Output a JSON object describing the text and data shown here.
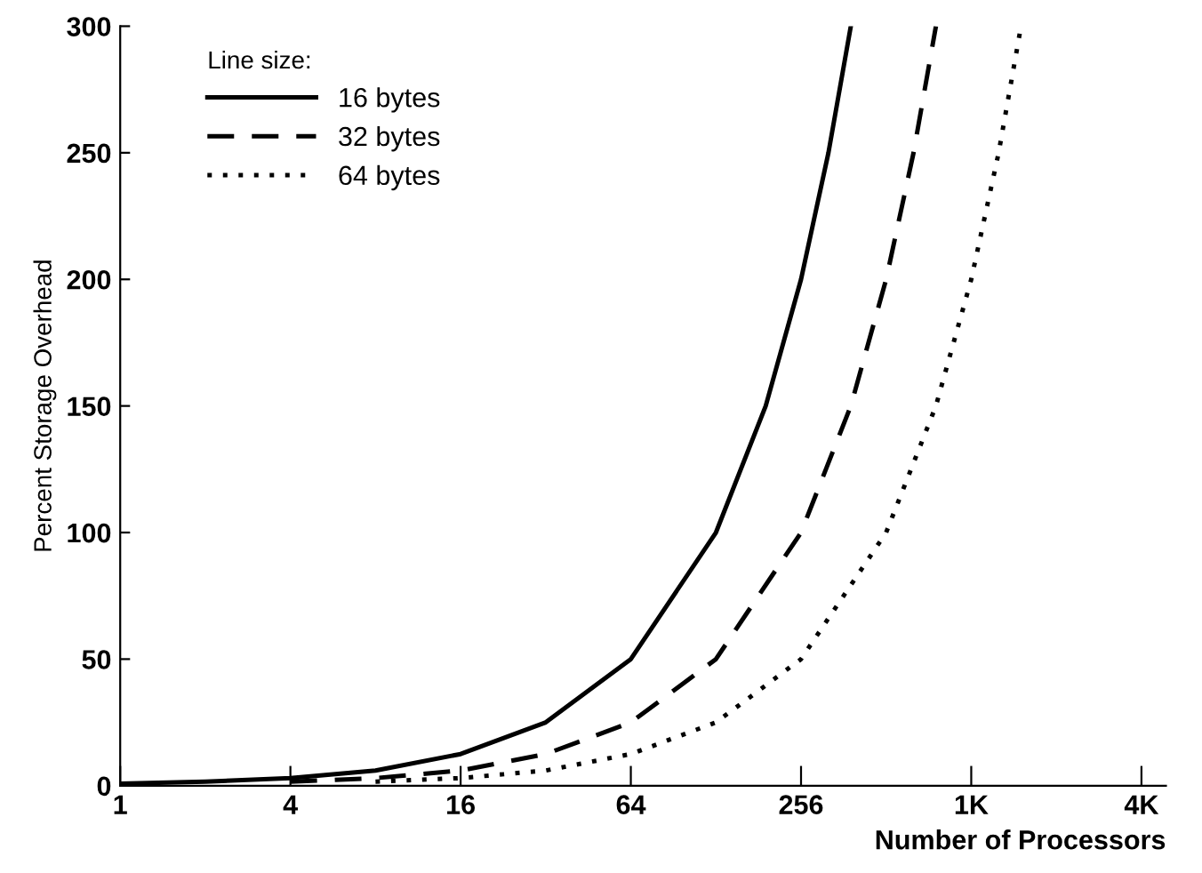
{
  "chart_data": {
    "type": "line",
    "xlabel": "Number of Processors",
    "ylabel": "Percent Storage Overhead",
    "legend_title": "Line size:",
    "legend": "top left",
    "grid": false,
    "log": "x",
    "xlim": [
      1,
      5000
    ],
    "xticks": [
      1,
      4,
      16,
      64,
      256,
      {
        "value": 1024,
        "label": "1K"
      },
      {
        "value": 4096,
        "label": "4K"
      }
    ],
    "ylim": [
      0,
      300
    ],
    "yticks": [
      0,
      50,
      100,
      150,
      200,
      250,
      300
    ],
    "series": [
      {
        "name": "16 bytes",
        "color": "#000000",
        "line_style": "solid",
        "x": [
          1,
          2,
          4,
          8,
          16,
          32,
          64,
          128,
          192,
          256,
          320,
          384
        ],
        "values": [
          0.8,
          1.6,
          3,
          6,
          12.5,
          25,
          50,
          100,
          150,
          200,
          250,
          300
        ]
      },
      {
        "name": "32 bytes",
        "color": "#000000",
        "line_style": "dashed",
        "x": [
          4,
          8,
          16,
          32,
          64,
          128,
          256,
          384,
          512,
          640,
          768
        ],
        "values": [
          1.6,
          3,
          6,
          12.5,
          25,
          50,
          100,
          150,
          200,
          250,
          300
        ]
      },
      {
        "name": "64 bytes",
        "color": "#000000",
        "line_style": "dotted",
        "x": [
          8,
          16,
          32,
          64,
          128,
          256,
          512,
          768,
          1024,
          1280,
          1536
        ],
        "values": [
          1.6,
          3,
          6,
          12.5,
          25,
          50,
          100,
          150,
          200,
          250,
          300
        ]
      }
    ]
  }
}
